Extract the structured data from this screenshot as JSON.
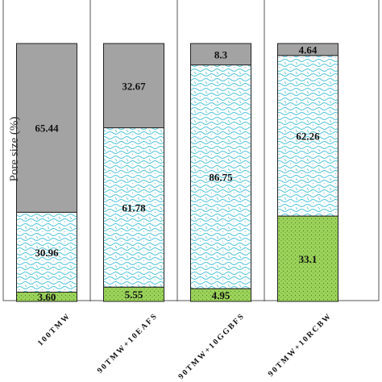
{
  "chart_data": {
    "type": "bar",
    "stacked": true,
    "percent": true,
    "categories": [
      "100TMW",
      "90TMW+10EAFS",
      "90TMW+10GGBFS",
      "90TMW+10RCBW"
    ],
    "ylabel": "Pore size (%)",
    "ylim": [
      0,
      100
    ],
    "series": [
      {
        "values": [
          3.6,
          5.55,
          4.95,
          33.1
        ],
        "color": "#9bd35a",
        "pattern": "dots"
      },
      {
        "values": [
          30.96,
          61.78,
          86.75,
          62.26
        ],
        "color": "#ffffff",
        "pattern": "waves-cyan"
      },
      {
        "values": [
          65.44,
          32.67,
          8.3,
          4.64
        ],
        "color": "#a3a3a3",
        "pattern": "solid"
      }
    ],
    "value_labels": [
      [
        "3.60",
        "5.55",
        "4.95",
        "33.1"
      ],
      [
        "30.96",
        "61.78",
        "86.75",
        "62.26"
      ],
      [
        "65.44",
        "32.67",
        "8.3",
        "4.64"
      ]
    ],
    "grid": false,
    "legend": "none"
  }
}
